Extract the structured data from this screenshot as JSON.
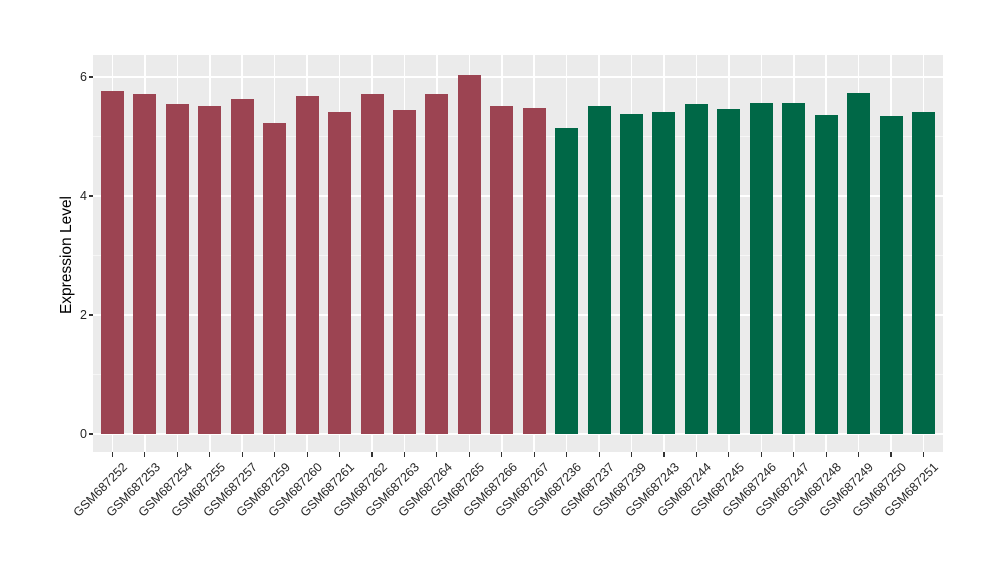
{
  "chart_data": {
    "type": "bar",
    "ylabel": "Expression Level",
    "xlabel": "",
    "ylim": [
      0,
      6.4
    ],
    "yticks_major": [
      0,
      2,
      4,
      6
    ],
    "yticks_minor": [
      1,
      3,
      5
    ],
    "grid": "on",
    "legend": "none",
    "categories": [
      "GSM687252",
      "GSM687253",
      "GSM687254",
      "GSM687255",
      "GSM687257",
      "GSM687259",
      "GSM687260",
      "GSM687261",
      "GSM687262",
      "GSM687263",
      "GSM687264",
      "GSM687265",
      "GSM687266",
      "GSM687267",
      "GSM687236",
      "GSM687237",
      "GSM687239",
      "GSM687243",
      "GSM687244",
      "GSM687245",
      "GSM687246",
      "GSM687247",
      "GSM687248",
      "GSM687249",
      "GSM687250",
      "GSM687251"
    ],
    "values": [
      5.76,
      5.71,
      5.55,
      5.51,
      5.63,
      5.22,
      5.68,
      5.42,
      5.71,
      5.45,
      5.71,
      6.04,
      5.51,
      5.48,
      5.14,
      5.51,
      5.38,
      5.41,
      5.54,
      5.46,
      5.57,
      5.56,
      5.36,
      5.73,
      5.34,
      5.41
    ],
    "bar_groups": [
      0,
      0,
      0,
      0,
      0,
      0,
      0,
      0,
      0,
      0,
      0,
      0,
      0,
      0,
      1,
      1,
      1,
      1,
      1,
      1,
      1,
      1,
      1,
      1,
      1,
      1
    ],
    "series": [
      {
        "name": "group-red",
        "color": "#9C4452"
      },
      {
        "name": "group-green",
        "color": "#006847"
      }
    ],
    "colors": {
      "panel_background": "#EBEBEB",
      "grid_major": "#FFFFFF",
      "axis_text": "#262626",
      "tick_mark": "#333333",
      "bar_red": "#9C4452",
      "bar_green": "#006847"
    }
  }
}
